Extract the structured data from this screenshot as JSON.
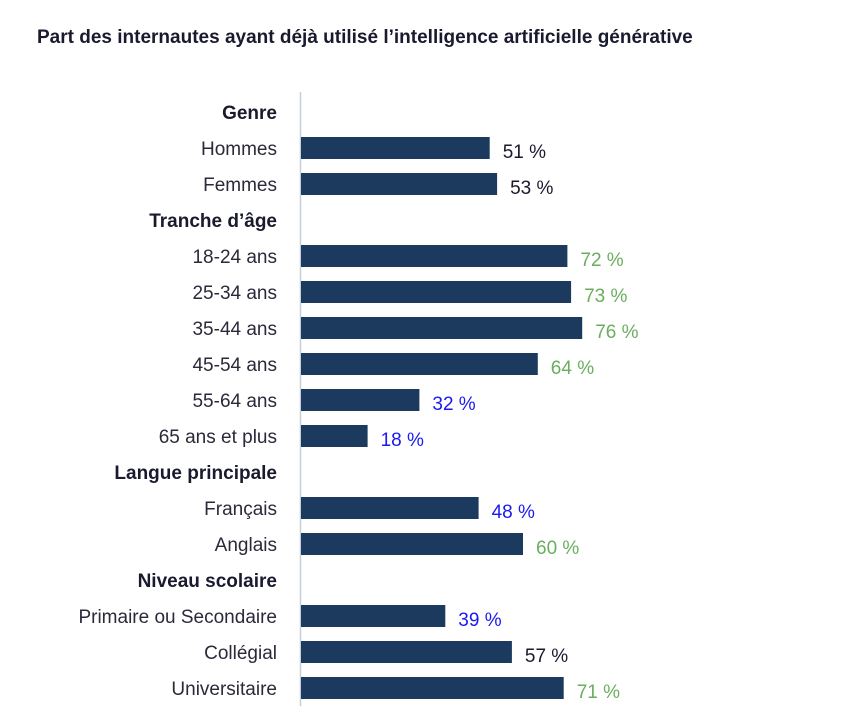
{
  "chart_data": {
    "type": "bar",
    "orientation": "horizontal",
    "title": "Part des internautes ayant déjà utilisé l’intelligence artificielle générative",
    "xlabel": "",
    "ylabel": "",
    "xlim": [
      0,
      100
    ],
    "grid": false,
    "unit": "%",
    "bar_color": "#1b3a5e",
    "label_colors": {
      "neutral": "#1a1a2e",
      "high": "#6aae5e",
      "low": "#1a1aee"
    },
    "groups": [
      {
        "name": "Genre",
        "items": [
          {
            "label": "Hommes",
            "value": 51,
            "value_label": "51 %",
            "tone": "neutral"
          },
          {
            "label": "Femmes",
            "value": 53,
            "value_label": "53 %",
            "tone": "neutral"
          }
        ]
      },
      {
        "name": "Tranche d’âge",
        "items": [
          {
            "label": "18-24 ans",
            "value": 72,
            "value_label": "72 %",
            "tone": "high"
          },
          {
            "label": "25-34 ans",
            "value": 73,
            "value_label": "73 %",
            "tone": "high"
          },
          {
            "label": "35-44 ans",
            "value": 76,
            "value_label": "76 %",
            "tone": "high"
          },
          {
            "label": "45-54 ans",
            "value": 64,
            "value_label": "64 %",
            "tone": "high"
          },
          {
            "label": "55-64 ans",
            "value": 32,
            "value_label": "32 %",
            "tone": "low"
          },
          {
            "label": "65 ans et plus",
            "value": 18,
            "value_label": "18 %",
            "tone": "low"
          }
        ]
      },
      {
        "name": "Langue principale",
        "items": [
          {
            "label": "Français",
            "value": 48,
            "value_label": "48 %",
            "tone": "low"
          },
          {
            "label": "Anglais",
            "value": 60,
            "value_label": "60 %",
            "tone": "high"
          }
        ]
      },
      {
        "name": "Niveau scolaire",
        "items": [
          {
            "label": "Primaire ou Secondaire",
            "value": 39,
            "value_label": "39 %",
            "tone": "low"
          },
          {
            "label": "Collégial",
            "value": 57,
            "value_label": "57 %",
            "tone": "neutral"
          },
          {
            "label": "Universitaire",
            "value": 71,
            "value_label": "71 %",
            "tone": "high"
          }
        ]
      }
    ]
  }
}
